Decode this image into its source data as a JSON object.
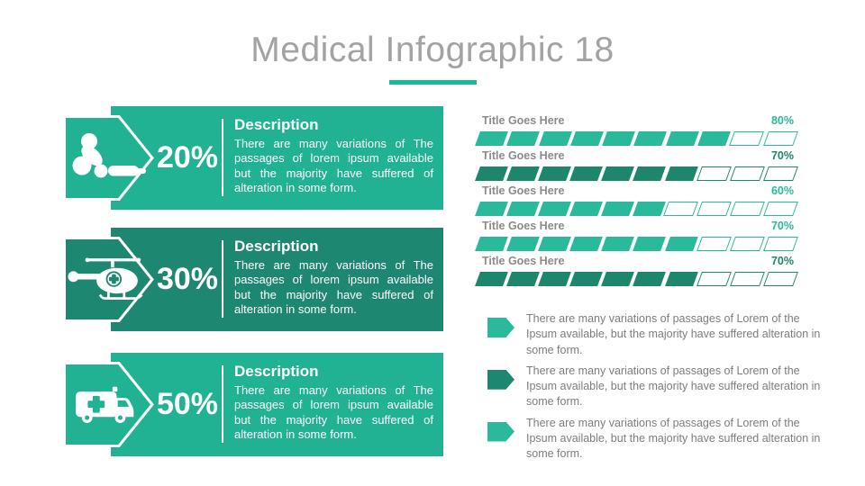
{
  "slide": {
    "title": "Medical Infographic 18"
  },
  "cards": [
    {
      "icon": "cpr-icon",
      "percent": "20%",
      "heading": "Description",
      "body": "There are many variations of The passages of lorem ipsum available but the majority have suffered of alteration in some form.",
      "variant": "light"
    },
    {
      "icon": "helicopter-icon",
      "percent": "30%",
      "heading": "Description",
      "body": "There are many variations of The passages of lorem ipsum available but the majority have suffered of alteration in some form.",
      "variant": "dark"
    },
    {
      "icon": "ambulance-icon",
      "percent": "50%",
      "heading": "Description",
      "body": "There are many variations of The passages of lorem ipsum available but the majority have suffered of alteration in some form.",
      "variant": "light"
    }
  ],
  "bars": [
    {
      "label": "Title Goes Here",
      "value": "80%",
      "filled": 8,
      "total": 10,
      "variant": "light"
    },
    {
      "label": "Title Goes Here",
      "value": "70%",
      "filled": 7,
      "total": 10,
      "variant": "dark"
    },
    {
      "label": "Title Goes Here",
      "value": "60%",
      "filled": 6,
      "total": 10,
      "variant": "light"
    },
    {
      "label": "Title Goes Here",
      "value": "70%",
      "filled": 7,
      "total": 10,
      "variant": "light"
    },
    {
      "label": "Title Goes Here",
      "value": "70%",
      "filled": 7,
      "total": 10,
      "variant": "dark"
    }
  ],
  "notes": [
    {
      "text": "There are many variations of passages of Lorem of the Ipsum available, but the majority have suffered alteration in some form.",
      "variant": "light"
    },
    {
      "text": "There are many variations of passages of Lorem of the Ipsum available, but the majority have suffered alteration in some form.",
      "variant": "dark"
    },
    {
      "text": "There are many variations of passages of Lorem of the Ipsum available, but the majority have suffered alteration in some form.",
      "variant": "light"
    }
  ],
  "colors": {
    "teal": "#21b294",
    "dark_teal": "#1e8772",
    "bar_teal": "#2ab99a",
    "bar_dark": "#1e866d",
    "accent_underline": "#12bc9b",
    "title_gray": "#a3a3a3",
    "label_gray": "#8b8b8b",
    "note_gray": "#7d7d7d"
  },
  "chart_data": {
    "type": "bar",
    "categories": [
      "Title Goes Here",
      "Title Goes Here",
      "Title Goes Here",
      "Title Goes Here",
      "Title Goes Here"
    ],
    "values": [
      80,
      70,
      60,
      70,
      70
    ],
    "unit": "%",
    "segments_per_bar": 10,
    "title": "Segmented progress bars",
    "legend_position": "none",
    "side_percentages": [
      20,
      30,
      50
    ]
  }
}
